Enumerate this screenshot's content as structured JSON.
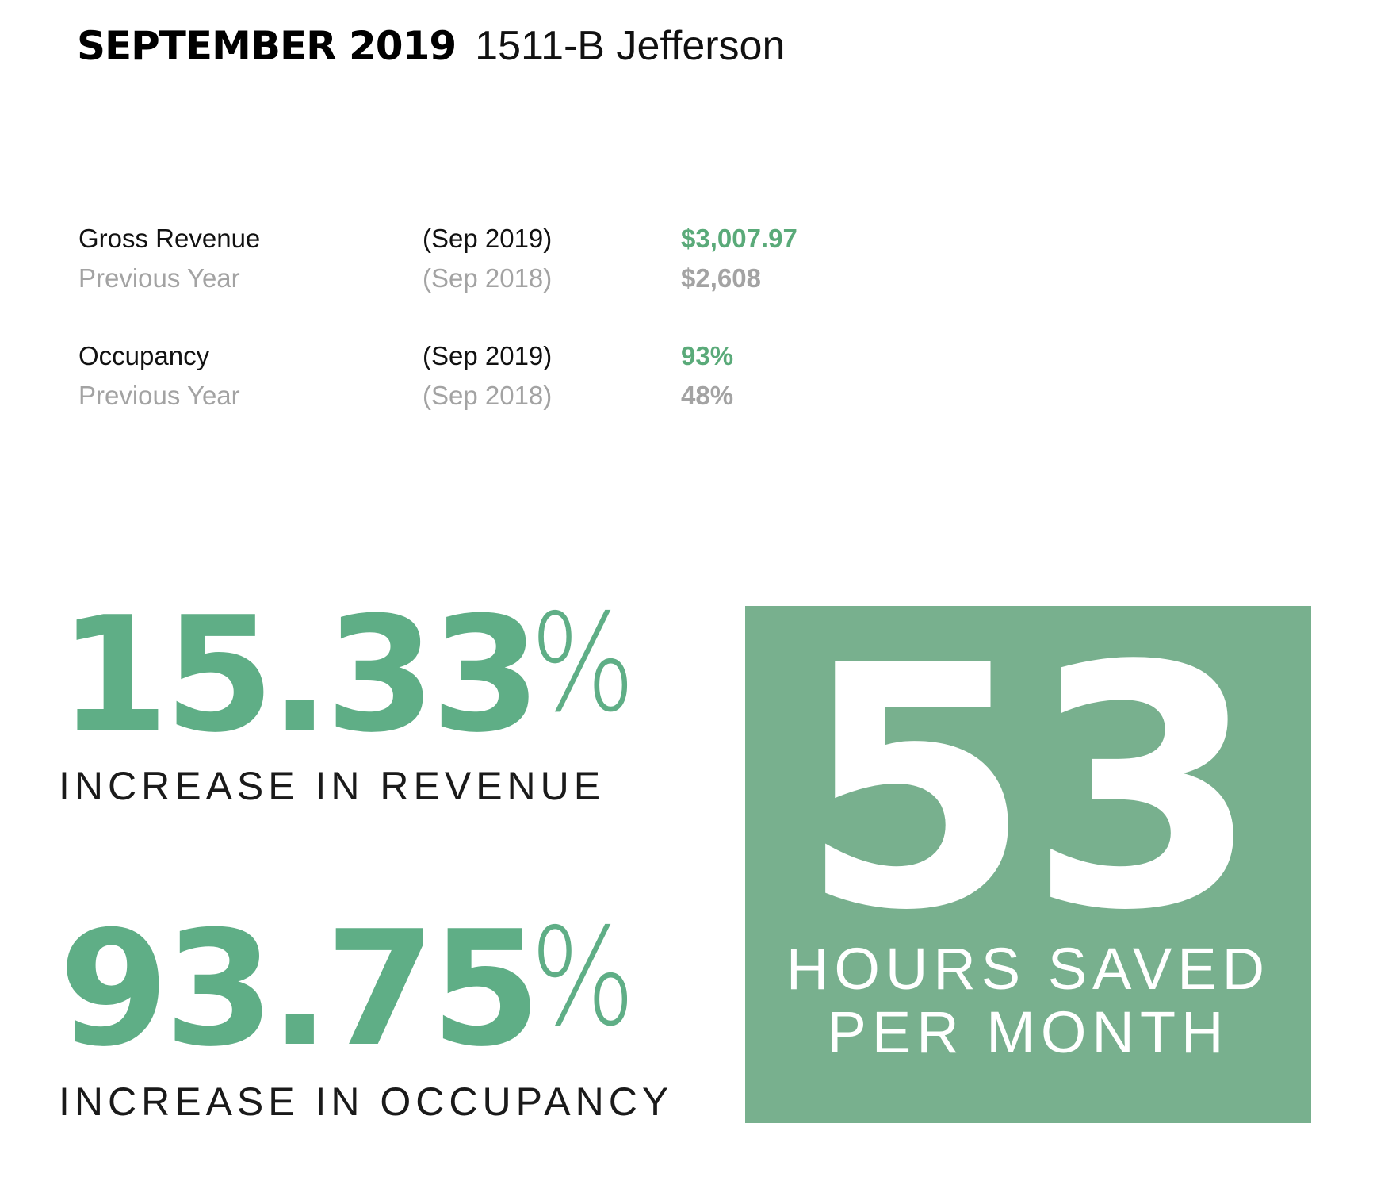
{
  "header": {
    "month": "SEPTEMBER 2019",
    "address": "1511-B Jefferson"
  },
  "metrics": [
    {
      "current": {
        "label": "Gross Revenue",
        "period": "(Sep 2019)",
        "value": "$3,007.97"
      },
      "previous": {
        "label": "Previous Year",
        "period": "(Sep 2018)",
        "value": "$2,608"
      }
    },
    {
      "current": {
        "label": "Occupancy",
        "period": "(Sep 2019)",
        "value": "93%"
      },
      "previous": {
        "label": "Previous Year",
        "period": "(Sep 2018)",
        "value": "48%"
      }
    }
  ],
  "stats": {
    "revenue": {
      "number": "15.33",
      "unit": "%",
      "caption": "INCREASE IN REVENUE"
    },
    "occupancy": {
      "number": "93.75",
      "unit": "%",
      "caption": "INCREASE IN OCCUPANCY"
    }
  },
  "hours_saved": {
    "number": "53",
    "caption_line1": "HOURS SAVED",
    "caption_line2": "PER MONTH"
  },
  "colors": {
    "accent_green": "#5fae86",
    "value_green": "#5aaa79",
    "box_green": "#78b08e",
    "muted_gray": "#a3a3a3"
  }
}
